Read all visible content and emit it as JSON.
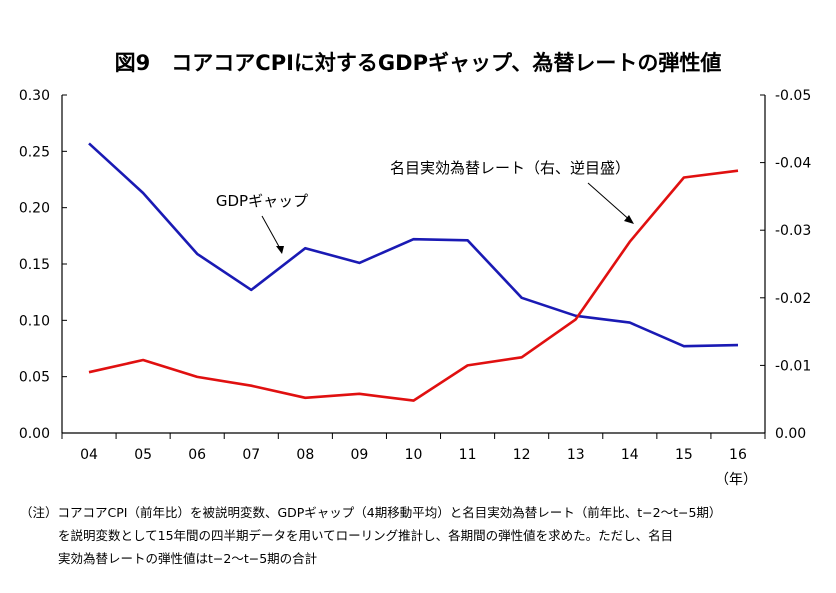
{
  "chart_data": {
    "type": "line",
    "title": "図9　コアコアCPIに対するGDPギャップ、為替レートの弾性値",
    "x_unit": "（年）",
    "categories": [
      "04",
      "05",
      "06",
      "07",
      "08",
      "09",
      "10",
      "11",
      "12",
      "13",
      "14",
      "15",
      "16"
    ],
    "left_axis": {
      "ylim": [
        0.0,
        0.3
      ],
      "ticks": [
        "0.30",
        "0.25",
        "0.20",
        "0.15",
        "0.10",
        "0.05",
        "0.00"
      ]
    },
    "right_axis": {
      "ylim": [
        0.0,
        -0.05
      ],
      "inverted": true,
      "ticks": [
        "-0.05",
        "-0.04",
        "-0.03",
        "-0.02",
        "-0.01",
        "0.00"
      ]
    },
    "series": [
      {
        "name": "GDPギャップ",
        "axis": "left",
        "color": "#1a1ab4",
        "values": [
          0.257,
          0.213,
          0.159,
          0.127,
          0.164,
          0.151,
          0.172,
          0.171,
          0.12,
          0.104,
          0.098,
          0.077,
          0.078
        ]
      },
      {
        "name": "名目実効為替レート（右、逆目盛）",
        "axis": "right",
        "color": "#e01010",
        "values": [
          -0.009,
          -0.0108,
          -0.0083,
          -0.007,
          -0.0052,
          -0.0058,
          -0.0048,
          -0.01,
          -0.0112,
          -0.0168,
          -0.0283,
          -0.0378,
          -0.0388
        ]
      }
    ],
    "grid": false,
    "legend": "annotations"
  },
  "note": {
    "line1": "（注）コアコアCPI（前年比）を被説明変数、GDPギャップ（4期移動平均）と名目実効為替レート（前年比、t−2〜t−5期）",
    "line2": "を説明変数として15年間の四半期データを用いてローリング推計し、各期間の弾性値を求めた。ただし、名目",
    "line3": "実効為替レートの弾性値はt−2〜t−5期の合計"
  }
}
